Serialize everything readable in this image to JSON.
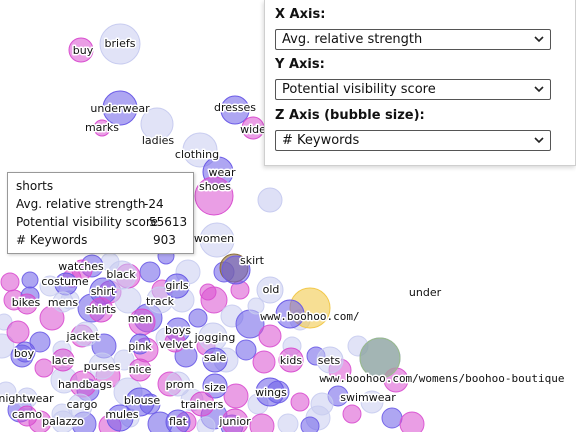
{
  "controls": {
    "x_axis": {
      "label": "X Axis:",
      "value": "Avg. relative strength"
    },
    "y_axis": {
      "label": "Y Axis:",
      "value": "Potential visibility score"
    },
    "z_axis": {
      "label": "Z Axis (bubble size):",
      "value": "# Keywords"
    }
  },
  "tooltip": {
    "title": "shorts",
    "rows": [
      {
        "label": "Avg. relative strength",
        "value": "-24"
      },
      {
        "label": "Potential visibility score",
        "value": "55613"
      },
      {
        "label": "# Keywords",
        "value": "903"
      }
    ]
  },
  "chart_data": {
    "type": "scatter",
    "title": "",
    "xlabel": "Avg. relative strength",
    "ylabel": "Potential visibility score",
    "size_label": "# Keywords",
    "labels": [
      "buy",
      "briefs",
      "underwear",
      "marks",
      "ladies",
      "dresses",
      "wide",
      "clothing",
      "wear",
      "shoes",
      "women",
      "skirt",
      "under",
      "old",
      "www.boohoo.com/",
      "watches",
      "black",
      "costume",
      "bikes",
      "mens",
      "shirt",
      "shirts",
      "track",
      "girls",
      "men",
      "jacket",
      "boys",
      "velvet",
      "jogging",
      "pink",
      "lace",
      "purses",
      "boy",
      "kids",
      "sets",
      "sale",
      "nice",
      "prom",
      "size",
      "handbags",
      "www.boohoo.com/womens/boohoo-boutique",
      "wings",
      "swimwear",
      "nightwear",
      "blouse",
      "trainers",
      "cargo",
      "mules",
      "camo",
      "palazzo",
      "flat",
      "junior",
      "shorts"
    ]
  }
}
